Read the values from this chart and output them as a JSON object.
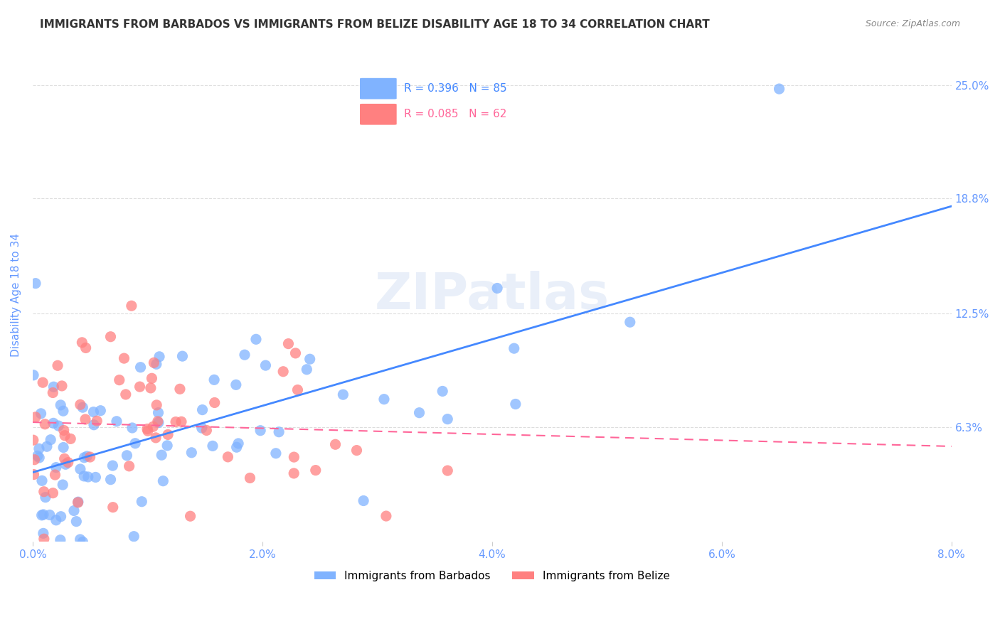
{
  "title": "IMMIGRANTS FROM BARBADOS VS IMMIGRANTS FROM BELIZE DISABILITY AGE 18 TO 34 CORRELATION CHART",
  "source": "Source: ZipAtlas.com",
  "xlabel_ticks": [
    "0.0%",
    "2.0%",
    "4.0%",
    "6.0%",
    "8.0%"
  ],
  "xlabel_tick_vals": [
    0.0,
    0.02,
    0.04,
    0.06,
    0.08
  ],
  "ylabel": "Disability Age 18 to 34",
  "ylabel_ticks": [
    "6.3%",
    "12.5%",
    "18.8%",
    "25.0%"
  ],
  "ylabel_tick_vals": [
    0.063,
    0.125,
    0.188,
    0.25
  ],
  "xlim": [
    0.0,
    0.08
  ],
  "ylim": [
    0.0,
    0.27
  ],
  "watermark": "ZIPatlas",
  "legend_barbados": "Immigrants from Barbados",
  "legend_belize": "Immigrants from Belize",
  "R_barbados": 0.396,
  "N_barbados": 85,
  "R_belize": 0.085,
  "N_belize": 62,
  "color_barbados": "#80b3ff",
  "color_belize": "#ff8080",
  "line_color_barbados": "#4488ff",
  "line_color_belize": "#ff6699",
  "bg_color": "#ffffff",
  "grid_color": "#dddddd",
  "title_color": "#333333",
  "tick_label_color": "#6699ff"
}
